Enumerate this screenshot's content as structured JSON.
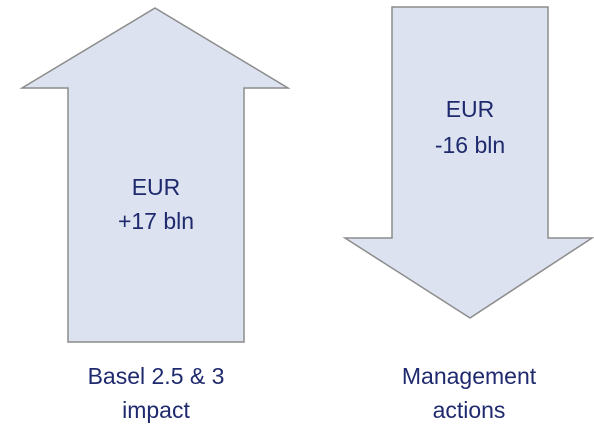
{
  "arrows": [
    {
      "value_lines": [
        "EUR",
        "+17 bln"
      ],
      "caption_lines": [
        "Basel 2.5 & 3",
        "impact"
      ]
    },
    {
      "value_lines": [
        "EUR",
        "-16 bln"
      ],
      "caption_lines": [
        "Management",
        "actions"
      ]
    }
  ]
}
